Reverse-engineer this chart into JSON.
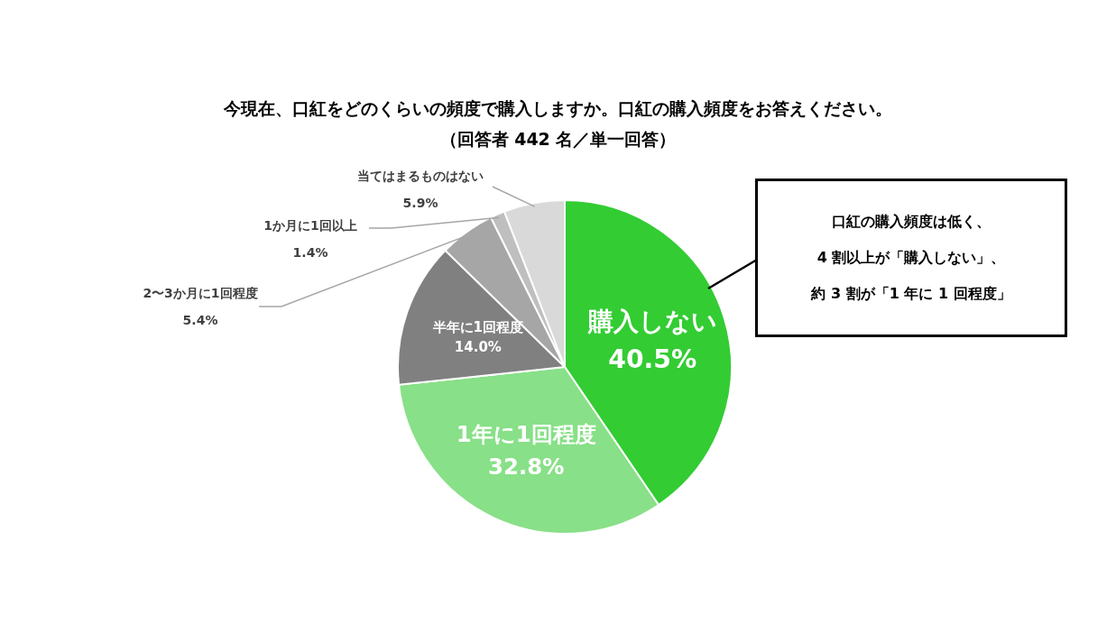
{
  "chart_data": {
    "type": "pie",
    "title": "今現在、口紅をどのくらいの頻度で購入しますか。口紅の購入頻度をお答えください。",
    "subtitle": "（回答者 442 名／単一回答）",
    "categories": [
      "購入しない",
      "1年に1回程度",
      "半年に1回程度",
      "2〜3か月に1回程度",
      "1か月に1回以上",
      "当てはまるものはない"
    ],
    "values": [
      40.5,
      32.8,
      14.0,
      5.4,
      1.4,
      5.9
    ],
    "value_labels": [
      "40.5%",
      "32.8%",
      "14.0%",
      "5.4%",
      "1.4%",
      "5.9%"
    ],
    "colors": [
      "#33cc33",
      "#88e088",
      "#808080",
      "#a6a6a6",
      "#bfbfbf",
      "#d9d9d9"
    ],
    "annotations": [
      "口紅の購入頻度は低く、",
      "4 割以上が「購入しない」、",
      "約 3 割が「1 年に 1 回程度」"
    ]
  }
}
